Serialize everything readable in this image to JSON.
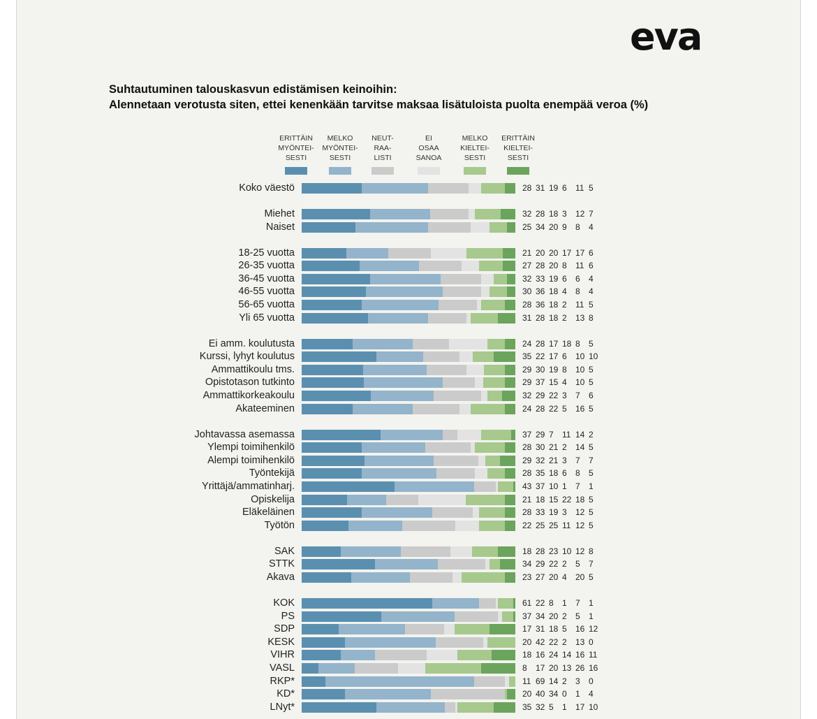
{
  "logo": "eva",
  "title_line1": "Suhtautuminen talouskasvun edistämisen keinoihin:",
  "title_line2": "Alennetaan verotusta siten, ettei kenenkään tarvitse maksaa lisätuloista puolta enempää veroa (%)",
  "colors": [
    "#5b8fb0",
    "#93b4cb",
    "#cbcbcb",
    "#e3e3e3",
    "#a7c98d",
    "#6ba45c"
  ],
  "legend": [
    {
      "lines": [
        "ERITTÄIN",
        "MYÖNTEI-",
        "SESTI"
      ]
    },
    {
      "lines": [
        "MELKO",
        "MYÖNTEI-",
        "SESTI"
      ]
    },
    {
      "lines": [
        "NEUT-",
        "RAA-",
        "LISTI"
      ]
    },
    {
      "lines": [
        "EI",
        "OSAA",
        "SANOA"
      ]
    },
    {
      "lines": [
        "MELKO",
        "KIELTEI-",
        "SESTI"
      ]
    },
    {
      "lines": [
        "ERITTÄIN",
        "KIELTEI-",
        "SESTI"
      ]
    }
  ],
  "chart_data": {
    "type": "bar",
    "orientation": "horizontal",
    "stacked": true,
    "unit": "%",
    "series_names": [
      "Erittäin myönteisesti",
      "Melko myönteisesti",
      "Neutraalisti",
      "Ei osaa sanoa",
      "Melko kielteisesti",
      "Erittäin kielteisesti"
    ],
    "rows": [
      {
        "label": "Koko väestö",
        "values": [
          28,
          31,
          19,
          6,
          11,
          5
        ]
      },
      {
        "label": "Miehet",
        "values": [
          32,
          28,
          18,
          3,
          12,
          7
        ]
      },
      {
        "label": "Naiset",
        "values": [
          25,
          34,
          20,
          9,
          8,
          4
        ]
      },
      {
        "label": "18-25 vuotta",
        "values": [
          21,
          20,
          20,
          17,
          17,
          6
        ]
      },
      {
        "label": "26-35 vuotta",
        "values": [
          27,
          28,
          20,
          8,
          11,
          6
        ]
      },
      {
        "label": "36-45 vuotta",
        "values": [
          32,
          33,
          19,
          6,
          6,
          4
        ]
      },
      {
        "label": "46-55 vuotta",
        "values": [
          30,
          36,
          18,
          4,
          8,
          4
        ]
      },
      {
        "label": "56-65 vuotta",
        "values": [
          28,
          36,
          18,
          2,
          11,
          5
        ]
      },
      {
        "label": "Yli 65 vuotta",
        "values": [
          31,
          28,
          18,
          2,
          13,
          8
        ]
      },
      {
        "label": "Ei amm. koulutusta",
        "values": [
          24,
          28,
          17,
          18,
          8,
          5
        ]
      },
      {
        "label": "Kurssi, lyhyt koulutus",
        "values": [
          35,
          22,
          17,
          6,
          10,
          10
        ]
      },
      {
        "label": "Ammattikoulu tms.",
        "values": [
          29,
          30,
          19,
          8,
          10,
          5
        ]
      },
      {
        "label": "Opistotason tutkinto",
        "values": [
          29,
          37,
          15,
          4,
          10,
          5
        ]
      },
      {
        "label": "Ammattikorkeakoulu",
        "values": [
          32,
          29,
          22,
          3,
          7,
          6
        ]
      },
      {
        "label": "Akateeminen",
        "values": [
          24,
          28,
          22,
          5,
          16,
          5
        ]
      },
      {
        "label": "Johtavassa asemassa",
        "values": [
          37,
          29,
          7,
          11,
          14,
          2
        ]
      },
      {
        "label": "Ylempi toimihenkilö",
        "values": [
          28,
          30,
          21,
          2,
          14,
          5
        ]
      },
      {
        "label": "Alempi toimihenkilö",
        "values": [
          29,
          32,
          21,
          3,
          7,
          7
        ]
      },
      {
        "label": "Työntekijä",
        "values": [
          28,
          35,
          18,
          6,
          8,
          5
        ]
      },
      {
        "label": "Yrittäjä/ammatinharj.",
        "values": [
          43,
          37,
          10,
          1,
          7,
          1
        ]
      },
      {
        "label": "Opiskelija",
        "values": [
          21,
          18,
          15,
          22,
          18,
          5
        ]
      },
      {
        "label": "Eläkeläinen",
        "values": [
          28,
          33,
          19,
          3,
          12,
          5
        ]
      },
      {
        "label": "Työtön",
        "values": [
          22,
          25,
          25,
          11,
          12,
          5
        ]
      },
      {
        "label": "SAK",
        "values": [
          18,
          28,
          23,
          10,
          12,
          8
        ]
      },
      {
        "label": "STTK",
        "values": [
          34,
          29,
          22,
          2,
          5,
          7
        ]
      },
      {
        "label": "Akava",
        "values": [
          23,
          27,
          20,
          4,
          20,
          5
        ]
      },
      {
        "label": "KOK",
        "values": [
          61,
          22,
          8,
          1,
          7,
          1
        ]
      },
      {
        "label": "PS",
        "values": [
          37,
          34,
          20,
          2,
          5,
          1
        ]
      },
      {
        "label": "SDP",
        "values": [
          17,
          31,
          18,
          5,
          16,
          12
        ]
      },
      {
        "label": "KESK",
        "values": [
          20,
          42,
          22,
          2,
          13,
          0
        ]
      },
      {
        "label": "VIHR",
        "values": [
          18,
          16,
          24,
          14,
          16,
          11
        ]
      },
      {
        "label": "VASL",
        "values": [
          8,
          17,
          20,
          13,
          26,
          16
        ]
      },
      {
        "label": "RKP*",
        "values": [
          11,
          69,
          14,
          2,
          3,
          0
        ]
      },
      {
        "label": "KD*",
        "values": [
          20,
          40,
          34,
          0,
          1,
          4
        ]
      },
      {
        "label": "LNyt*",
        "values": [
          35,
          32,
          5,
          1,
          17,
          10
        ]
      }
    ]
  }
}
